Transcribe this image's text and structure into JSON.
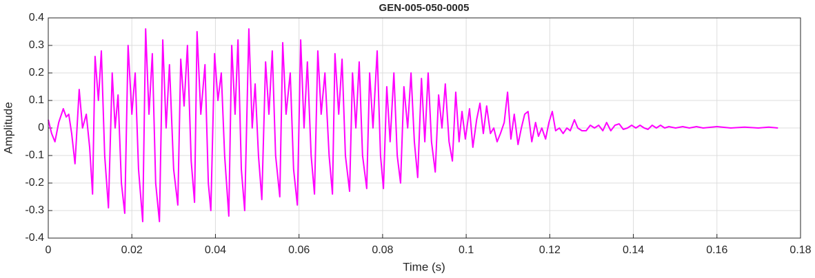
{
  "chart_data": {
    "type": "line",
    "title": "GEN-005-050-0005",
    "xlabel": "Time (s)",
    "ylabel": "Amplitude",
    "color": "#ff00ff",
    "grid": true,
    "xlim": [
      0,
      0.18
    ],
    "xticks": [
      0,
      0.02,
      0.04,
      0.06,
      0.08,
      0.1,
      0.12,
      0.14,
      0.16,
      0.18
    ],
    "ylim": [
      -0.4,
      0.4
    ],
    "yticks": [
      -0.4,
      -0.3,
      -0.2,
      -0.1,
      0,
      0.1,
      0.2,
      0.3,
      0.4
    ],
    "x": [
      0,
      0.0008,
      0.0016,
      0.0025,
      0.0036,
      0.0043,
      0.0049,
      0.0056,
      0.0064,
      0.0074,
      0.0082,
      0.0091,
      0.0099,
      0.0106,
      0.0112,
      0.012,
      0.0127,
      0.0135,
      0.0144,
      0.0153,
      0.016,
      0.0167,
      0.0175,
      0.0183,
      0.0191,
      0.02,
      0.0208,
      0.0216,
      0.0226,
      0.0233,
      0.0241,
      0.0249,
      0.0257,
      0.0266,
      0.0274,
      0.0282,
      0.029,
      0.03,
      0.031,
      0.0317,
      0.0325,
      0.0333,
      0.0342,
      0.035,
      0.0356,
      0.0365,
      0.0375,
      0.0383,
      0.0389,
      0.0398,
      0.0406,
      0.0414,
      0.0422,
      0.0432,
      0.0439,
      0.0447,
      0.0454,
      0.0462,
      0.047,
      0.048,
      0.0488,
      0.0495,
      0.0503,
      0.0511,
      0.052,
      0.0528,
      0.0536,
      0.0544,
      0.0554,
      0.0561,
      0.0569,
      0.0579,
      0.0587,
      0.0596,
      0.0604,
      0.0612,
      0.062,
      0.0629,
      0.0637,
      0.0645,
      0.0653,
      0.0662,
      0.0672,
      0.068,
      0.0686,
      0.0695,
      0.0703,
      0.0711,
      0.0721,
      0.0728,
      0.0736,
      0.0744,
      0.0752,
      0.0762,
      0.0769,
      0.0777,
      0.0787,
      0.0795,
      0.0802,
      0.081,
      0.0818,
      0.0827,
      0.0835,
      0.0843,
      0.0851,
      0.086,
      0.0868,
      0.0876,
      0.0884,
      0.0893,
      0.0901,
      0.0909,
      0.0917,
      0.0926,
      0.0934,
      0.0942,
      0.095,
      0.0959,
      0.0967,
      0.0975,
      0.0983,
      0.099,
      0.0998,
      0.1008,
      0.1016,
      0.1025,
      0.1033,
      0.1041,
      0.1049,
      0.1058,
      0.1066,
      0.1074,
      0.1082,
      0.1091,
      0.1099,
      0.1107,
      0.1115,
      0.1124,
      0.1132,
      0.114,
      0.1148,
      0.1157,
      0.1166,
      0.1173,
      0.1181,
      0.119,
      0.1198,
      0.1206,
      0.1214,
      0.1223,
      0.1232,
      0.1241,
      0.1249,
      0.1259,
      0.1267,
      0.1277,
      0.1287,
      0.1297,
      0.1307,
      0.1317,
      0.1327,
      0.1336,
      0.1346,
      0.1356,
      0.1366,
      0.1376,
      0.1386,
      0.1396,
      0.1406,
      0.1416,
      0.1426,
      0.1435,
      0.1445,
      0.1455,
      0.1465,
      0.1475,
      0.1485,
      0.1501,
      0.1518,
      0.1534,
      0.1551,
      0.1567,
      0.16,
      0.1633,
      0.1666,
      0.1699,
      0.1724,
      0.1746
    ],
    "values": [
      0.03,
      -0.02,
      -0.05,
      0.02,
      0.07,
      0.04,
      0.05,
      -0.02,
      -0.13,
      0.14,
      0.0,
      0.05,
      -0.07,
      -0.24,
      0.26,
      0.1,
      0.28,
      -0.1,
      -0.29,
      0.2,
      0,
      0.12,
      -0.2,
      -0.31,
      0.3,
      0.05,
      0.2,
      -0.15,
      -0.34,
      0.36,
      0.05,
      0.27,
      -0.2,
      -0.34,
      0.32,
      0.0,
      0.23,
      -0.15,
      -0.28,
      0.25,
      0.08,
      0.3,
      -0.12,
      -0.27,
      0.35,
      0.05,
      0.23,
      -0.2,
      -0.3,
      0.27,
      0.1,
      0.2,
      -0.1,
      -0.32,
      0.3,
      0.05,
      0.32,
      -0.15,
      -0.3,
      0.36,
      0.0,
      0.16,
      -0.1,
      -0.26,
      0.24,
      0.05,
      0.28,
      -0.1,
      -0.25,
      0.31,
      0.05,
      0.2,
      -0.15,
      -0.28,
      0.32,
      0.0,
      0.24,
      -0.1,
      -0.24,
      0.28,
      0.05,
      0.2,
      -0.1,
      -0.24,
      0.27,
      0.05,
      0.25,
      -0.1,
      -0.23,
      0.2,
      0.0,
      0.24,
      -0.1,
      -0.22,
      0.2,
      0.0,
      0.28,
      -0.1,
      -0.22,
      0.15,
      -0.05,
      0.2,
      -0.1,
      -0.2,
      0.15,
      0.0,
      0.2,
      -0.05,
      -0.18,
      0.18,
      -0.05,
      0.2,
      -0.05,
      -0.16,
      0.12,
      0.0,
      0.16,
      -0.05,
      -0.12,
      0.13,
      -0.05,
      0.06,
      -0.04,
      0.07,
      -0.07,
      0.03,
      0.09,
      -0.02,
      0.08,
      -0.02,
      0.0,
      -0.05,
      -0.02,
      0.02,
      0.13,
      -0.04,
      0.05,
      -0.06,
      0.0,
      0.05,
      0.06,
      -0.05,
      0.02,
      -0.03,
      0.0,
      -0.04,
      0.02,
      0.06,
      -0.01,
      0.0,
      -0.02,
      0.0,
      -0.01,
      0.03,
      0.0,
      -0.01,
      -0.01,
      0.01,
      0.0,
      0.01,
      -0.01,
      0.02,
      -0.01,
      0.01,
      0.015,
      -0.005,
      0.0,
      0.01,
      0.0,
      0.01,
      0.0,
      -0.005,
      0.01,
      0.0,
      0.01,
      0.0,
      0.005,
      0.0,
      0.005,
      0.0,
      0.005,
      0.0,
      0.005,
      0.0,
      0.003,
      0.0,
      0.003,
      0.0
    ]
  }
}
